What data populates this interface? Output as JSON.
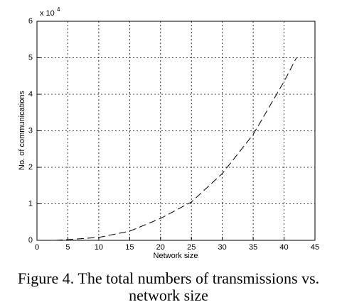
{
  "chart_data": {
    "type": "line",
    "xlabel": "Network size",
    "ylabel": "No. of communications",
    "y_multiplier_base": "x 10",
    "y_multiplier_exponent": "4",
    "x": [
      3,
      5,
      10,
      15,
      20,
      25,
      30,
      35,
      40,
      42
    ],
    "series": [
      {
        "color": "#000000",
        "values": [
          0,
          0.02,
          0.08,
          0.25,
          0.6,
          1.05,
          1.83,
          2.9,
          4.35,
          5.0
        ]
      }
    ],
    "xlim": [
      0,
      45
    ],
    "xticks": [
      0,
      5,
      10,
      15,
      20,
      25,
      30,
      35,
      40,
      45
    ],
    "ylim": [
      0,
      6
    ],
    "yticks": [
      0,
      1,
      2,
      3,
      4,
      5,
      6
    ],
    "grid": true
  },
  "caption": [
    "Figure 4. The total numbers of transmissions vs.",
    "network size"
  ]
}
